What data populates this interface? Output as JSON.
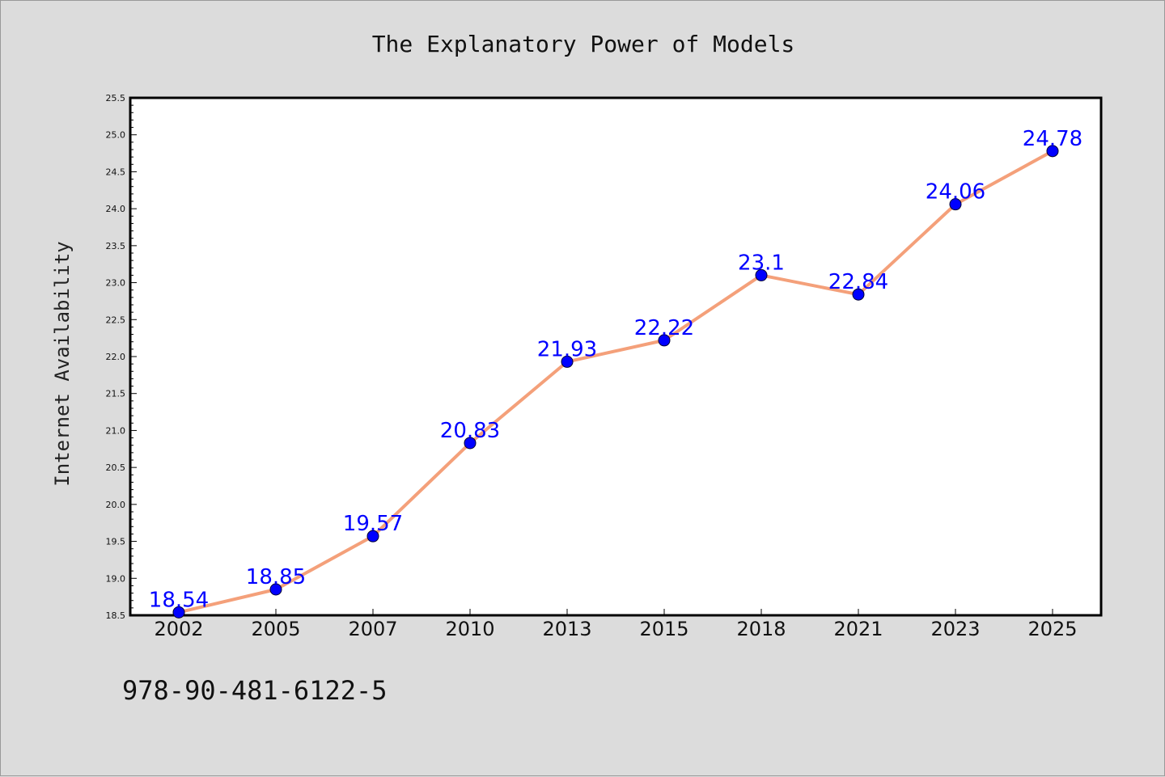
{
  "chart_data": {
    "type": "line",
    "title": "The Explanatory Power of Models",
    "xlabel": "",
    "ylabel": "Internet Availability",
    "categories": [
      "2002",
      "2005",
      "2007",
      "2010",
      "2013",
      "2015",
      "2018",
      "2021",
      "2023",
      "2025"
    ],
    "series": [
      {
        "values": [
          18.54,
          18.85,
          19.57,
          20.83,
          21.93,
          22.22,
          23.1,
          22.84,
          24.06,
          24.78
        ],
        "labels": [
          "18.54",
          "18.85",
          "19.57",
          "20.83",
          "21.93",
          "22.22",
          "23.1",
          "22.84",
          "24.06",
          "24.78"
        ]
      }
    ],
    "ylim": [
      18.5,
      25.5
    ],
    "yticks": [
      "18.5",
      "19.0",
      "19.5",
      "20.0",
      "20.5",
      "21.0",
      "21.5",
      "22.0",
      "22.5",
      "23.0",
      "23.5",
      "24.0",
      "24.5",
      "25.0",
      "25.5"
    ],
    "grid": false,
    "colors": {
      "line": "#f4a07a",
      "marker": "#0000ff",
      "data_label": "#0000ff",
      "background": "#dcdcdc",
      "plot_background": "#ffffff"
    }
  },
  "footer_text": "978-90-481-6122-5"
}
